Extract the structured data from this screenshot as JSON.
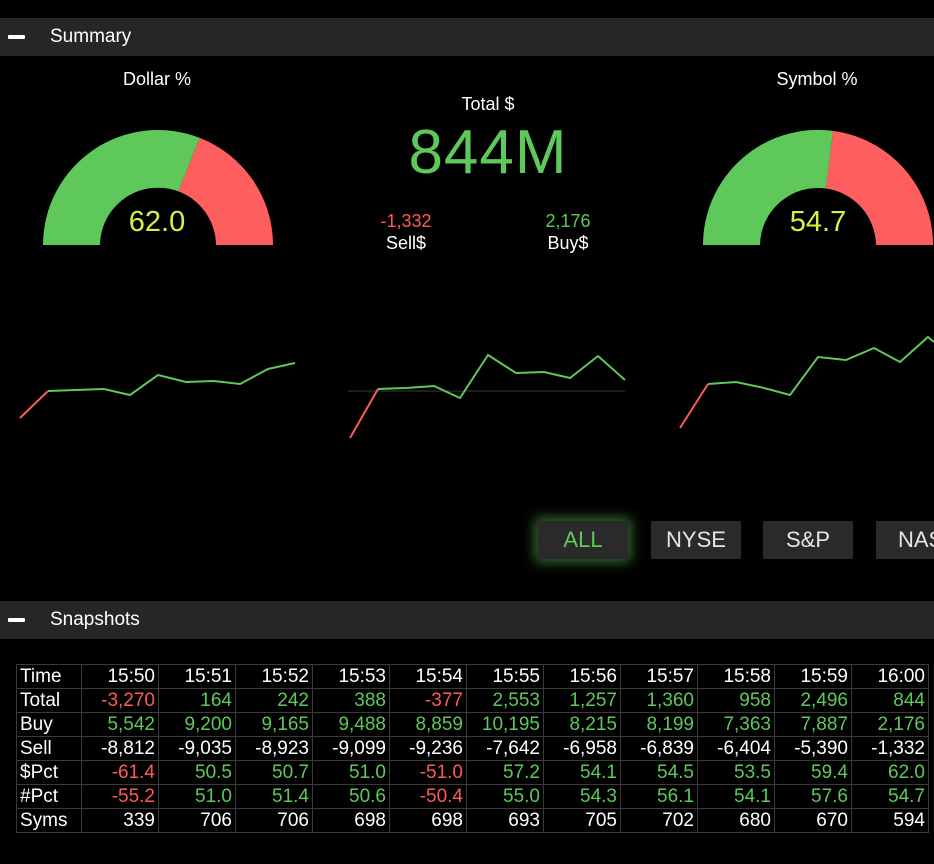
{
  "colors": {
    "green": "#5ec95a",
    "red": "#ff5a5a",
    "yellow": "#d6f04a",
    "bar": "#262626"
  },
  "summary": {
    "title": "Summary",
    "dollar_gauge": {
      "label": "Dollar %",
      "value": "62.0",
      "pct": 62.0
    },
    "symbol_gauge": {
      "label": "Symbol %",
      "value": "54.7",
      "pct": 54.7
    },
    "total": {
      "label": "Total $",
      "value": "844M"
    },
    "sell": {
      "value": "-1,332",
      "label": "Sell$"
    },
    "buy": {
      "value": "2,176",
      "label": "Buy$"
    }
  },
  "filters": [
    {
      "label": "ALL",
      "active": true
    },
    {
      "label": "NYSE",
      "active": false
    },
    {
      "label": "S&P",
      "active": false
    },
    {
      "label": "NAS",
      "active": false
    }
  ],
  "snapshots": {
    "title": "Snapshots",
    "times": [
      "15:50",
      "15:51",
      "15:52",
      "15:53",
      "15:54",
      "15:55",
      "15:56",
      "15:57",
      "15:58",
      "15:59",
      "16:00"
    ],
    "rows": [
      {
        "label": "Total",
        "values": [
          "-3,270",
          "164",
          "242",
          "388",
          "-377",
          "2,553",
          "1,257",
          "1,360",
          "958",
          "2,496",
          "844"
        ]
      },
      {
        "label": "Buy",
        "values": [
          "5,542",
          "9,200",
          "9,165",
          "9,488",
          "8,859",
          "10,195",
          "8,215",
          "8,199",
          "7,363",
          "7,887",
          "2,176"
        ]
      },
      {
        "label": "Sell",
        "values": [
          "-8,812",
          "-9,035",
          "-8,923",
          "-9,099",
          "-9,236",
          "-7,642",
          "-6,958",
          "-6,839",
          "-6,404",
          "-5,390",
          "-1,332"
        ]
      },
      {
        "label": "$Pct",
        "values": [
          "-61.4",
          "50.5",
          "50.7",
          "51.0",
          "-51.0",
          "57.2",
          "54.1",
          "54.5",
          "53.5",
          "59.4",
          "62.0"
        ]
      },
      {
        "label": "#Pct",
        "values": [
          "-55.2",
          "51.0",
          "51.4",
          "50.6",
          "-50.4",
          "55.0",
          "54.3",
          "56.1",
          "54.1",
          "57.6",
          "54.7"
        ]
      },
      {
        "label": "Syms",
        "values": [
          "339",
          "706",
          "706",
          "698",
          "698",
          "693",
          "705",
          "702",
          "680",
          "670",
          "594"
        ]
      }
    ],
    "row_header_label": "Time"
  }
}
